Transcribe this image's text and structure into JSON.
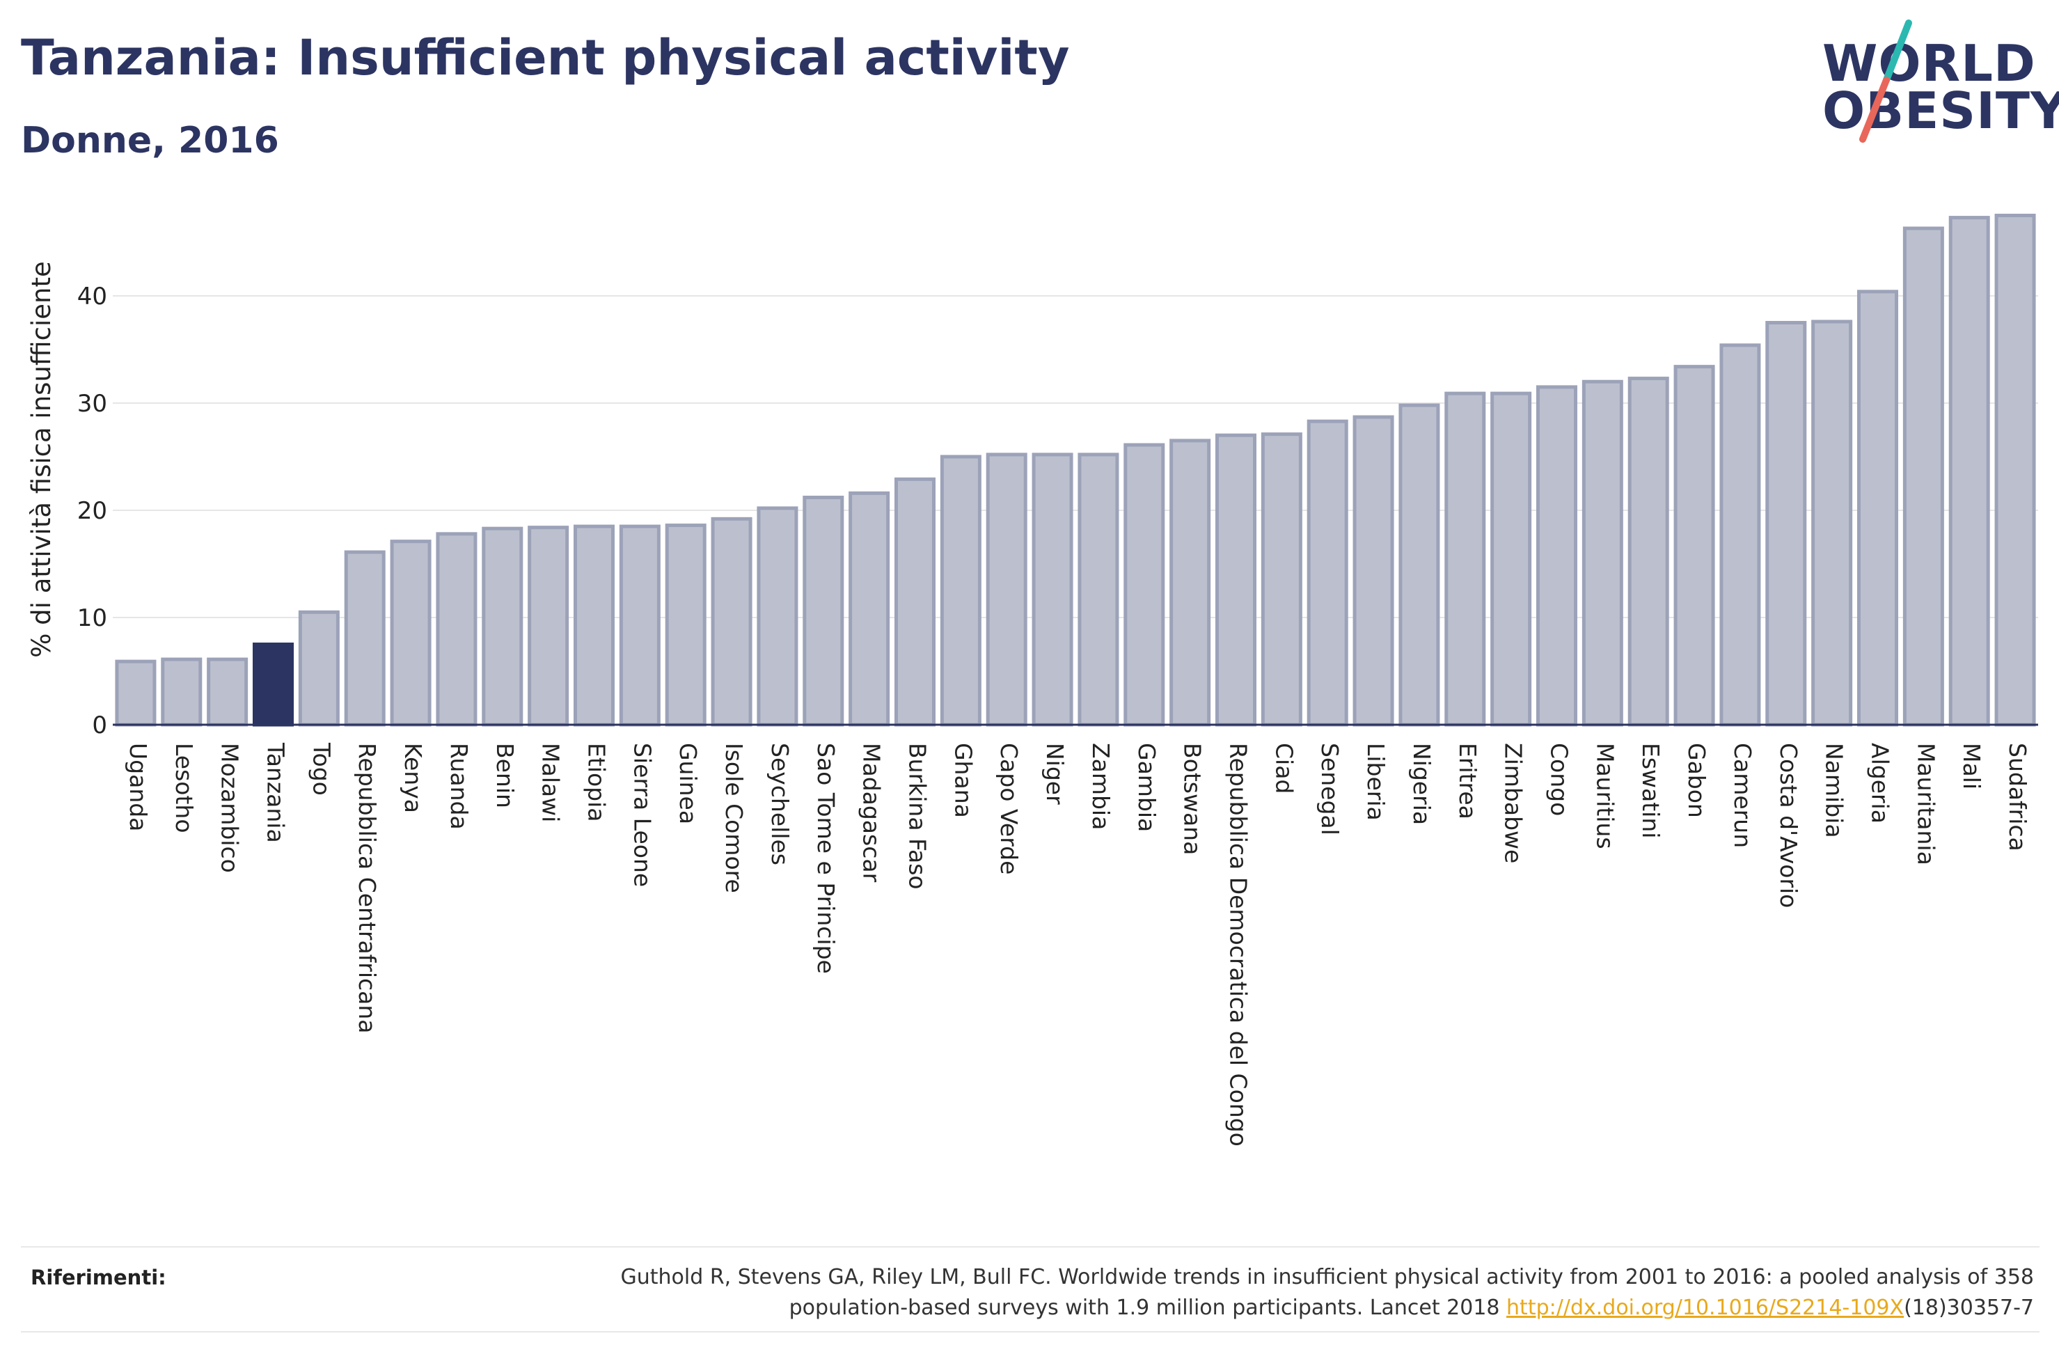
{
  "header": {
    "title": "Tanzania: Insufficient physical activity",
    "subtitle": "Donne, 2016"
  },
  "logo": {
    "line1": "WORLD",
    "line2": "OBESITY",
    "colors": {
      "text": "#2c3462",
      "slash_top": "#2bb8b0",
      "slash_bottom": "#e8675a"
    }
  },
  "colors": {
    "bar_fill": "#bcc0ce",
    "bar_stroke": "#9ca2b8",
    "highlight": "#2c3462",
    "axis": "#2c3462",
    "grid": "#e6e6e6"
  },
  "chart_data": {
    "type": "bar",
    "title": "Tanzania: Insufficient physical activity",
    "subtitle": "Donne, 2016",
    "ylabel": "% di attività fisica insufficiente",
    "xlabel": "",
    "ylim": [
      0,
      48
    ],
    "yticks": [
      0,
      10,
      20,
      30,
      40
    ],
    "grid": true,
    "highlight": "Tanzania",
    "categories": [
      "Uganda",
      "Lesotho",
      "Mozambico",
      "Tanzania",
      "Togo",
      "Repubblica Centrafricana",
      "Kenya",
      "Ruanda",
      "Benin",
      "Malawi",
      "Etiopia",
      "Sierra Leone",
      "Guinea",
      "Isole Comore",
      "Seychelles",
      "Sao Tome e Principe",
      "Madagascar",
      "Burkina Faso",
      "Ghana",
      "Capo Verde",
      "Niger",
      "Zambia",
      "Gambia",
      "Botswana",
      "Repubblica Democratica del Congo",
      "Ciad",
      "Senegal",
      "Liberia",
      "Nigeria",
      "Eritrea",
      "Zimbabwe",
      "Congo",
      "Mauritius",
      "Eswatini",
      "Gabon",
      "Camerun",
      "Costa d'Avorio",
      "Namibia",
      "Algeria",
      "Mauritania",
      "Mali",
      "Sudafrica"
    ],
    "values": [
      5.9,
      6.1,
      6.1,
      7.5,
      10.5,
      16.1,
      17.1,
      17.8,
      18.3,
      18.4,
      18.5,
      18.5,
      18.6,
      19.2,
      20.2,
      21.2,
      21.6,
      22.9,
      25.0,
      25.2,
      25.2,
      25.2,
      26.1,
      26.5,
      27.0,
      27.1,
      28.3,
      28.7,
      29.8,
      30.9,
      30.9,
      31.5,
      32.0,
      32.3,
      33.4,
      35.4,
      37.5,
      37.6,
      40.4,
      46.3,
      47.3,
      47.5
    ]
  },
  "references": {
    "label": "Riferimenti:",
    "line1": "Guthold R, Stevens GA, Riley LM, Bull FC. Worldwide trends in insufficient physical activity from 2001 to 2016: a pooled analysis of 358",
    "line2_prefix": "population-based surveys with 1.9 million participants. Lancet 2018 ",
    "link_text": "http://dx.doi.org/10.1016/S2214-109X",
    "line2_suffix": "(18)30357-7"
  }
}
